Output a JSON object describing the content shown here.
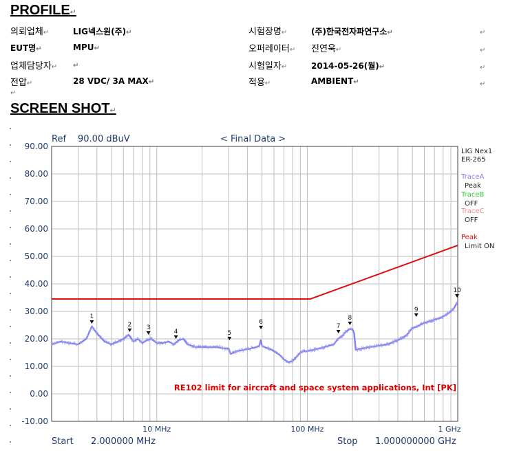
{
  "headings": {
    "profile": "PROFILE",
    "screenshot": "SCREEN SHOT"
  },
  "profile": {
    "client_label": "의뢰업체",
    "client_value": "LIG넥스원(주)",
    "site_label": "시험장명",
    "site_value": "(주)한국전자파연구소",
    "eut_label": "EUT명",
    "eut_value": "MPU",
    "operator_label": "오퍼레이터",
    "operator_value": "진연욱",
    "manager_label": "업체담당자",
    "manager_value": "",
    "date_label": "시험일자",
    "date_value": "2014-05-26(월)",
    "voltage_label": "전압",
    "voltage_value": "28 VDC/ 3A MAX",
    "apply_label": "적용",
    "apply_value": "AMBIENT"
  },
  "chart_header": {
    "ref_label": "Ref",
    "ref_value": "90.00 dBuV",
    "title": "< Final Data >"
  },
  "legend": {
    "device": "LIG Nex1",
    "model": "ER-265",
    "trace_a": "TraceA",
    "trace_a_state": "Peak",
    "trace_b": "TraceB",
    "trace_b_state": "OFF",
    "trace_c": "TraceC",
    "trace_c_state": "OFF",
    "peak": "Peak",
    "limit": "Limit ON"
  },
  "footer": {
    "start_label": "Start",
    "start_value": "2.000000 MHz",
    "stop_label": "Stop",
    "stop_value": "1.000000000 GHz"
  },
  "chart_data": {
    "type": "line",
    "x_scale": "log",
    "xlim": [
      2,
      1000
    ],
    "ylim": [
      -10,
      90
    ],
    "y_ticks": [
      90,
      80,
      70,
      60,
      50,
      40,
      30,
      20,
      10,
      0,
      -10
    ],
    "y_tick_labels": [
      "90.00",
      "80.00",
      "70.00",
      "60.00",
      "50.00",
      "40.00",
      "30.00",
      "20.00",
      "10.00",
      "0.00",
      "-10.00"
    ],
    "x_tick_labels": [
      {
        "x": 10,
        "label": "10 MHz"
      },
      {
        "x": 100,
        "label": "100 MHz"
      },
      {
        "x": 1000,
        "label": "1 GHz"
      }
    ],
    "annotation": "RE102 limit for aircraft and space system applications, Int [PK]",
    "colors": {
      "trace": "#8080ee",
      "limit": "#dd1111",
      "grid": "#bdbdbd",
      "annotation": "#dd0000",
      "trace_a": "#8080ee",
      "trace_b": "#33cc33",
      "trace_c": "#ee8888",
      "peak": "#dd1111",
      "axis_text": "#1f3a6a"
    },
    "series": [
      {
        "name": "Peak",
        "x": [
          2,
          2.3,
          2.6,
          3.0,
          3.4,
          3.7,
          4.0,
          4.5,
          5.0,
          5.5,
          6.0,
          6.5,
          7.0,
          7.5,
          8.0,
          8.6,
          9.2,
          10,
          11,
          12,
          13,
          14,
          15,
          16,
          17,
          18,
          20,
          22,
          25,
          28,
          30,
          31,
          34,
          38,
          42,
          46,
          48,
          49,
          50,
          52,
          55,
          58,
          62,
          66,
          70,
          75,
          80,
          85,
          90,
          95,
          100,
          110,
          120,
          130,
          140,
          150,
          160,
          170,
          180,
          190,
          200,
          205,
          210,
          230,
          260,
          300,
          340,
          380,
          420,
          460,
          500,
          540,
          580,
          620,
          660,
          700,
          760,
          820,
          880,
          940,
          1000
        ],
        "values": [
          18,
          19,
          18.5,
          18,
          20,
          24.5,
          22,
          19,
          18,
          19,
          20,
          21.5,
          19,
          20,
          18.5,
          19.5,
          20,
          18.5,
          18.5,
          19,
          18,
          19.5,
          20,
          18,
          17.5,
          17,
          17,
          17,
          17,
          16.5,
          16.5,
          14.5,
          15.5,
          16,
          16.5,
          17,
          17.5,
          19.5,
          17.5,
          17,
          16.5,
          16,
          15,
          14,
          12.5,
          11.5,
          12,
          13.5,
          15,
          15.5,
          15.5,
          16,
          16.5,
          17,
          17.5,
          18,
          20,
          21,
          22.5,
          23.5,
          23.5,
          22,
          16,
          16.5,
          17,
          17.5,
          18,
          19,
          20,
          21.5,
          24,
          24.5,
          25.5,
          26,
          26.5,
          27,
          27.5,
          28.5,
          29.5,
          31,
          33.5
        ]
      },
      {
        "name": "Limit",
        "x": [
          2,
          105,
          1000
        ],
        "values": [
          34.5,
          34.5,
          54
        ]
      }
    ],
    "markers": [
      {
        "label": "1",
        "x": 3.7,
        "y": 24.5
      },
      {
        "label": "2",
        "x": 6.6,
        "y": 21.5
      },
      {
        "label": "3",
        "x": 8.8,
        "y": 20.5
      },
      {
        "label": "4",
        "x": 13.4,
        "y": 19.0
      },
      {
        "label": "5",
        "x": 30.4,
        "y": 18.5
      },
      {
        "label": "6",
        "x": 49.2,
        "y": 22.5
      },
      {
        "label": "7",
        "x": 161,
        "y": 21.0
      },
      {
        "label": "8",
        "x": 192,
        "y": 24.0
      },
      {
        "label": "9",
        "x": 530,
        "y": 27.0
      },
      {
        "label": "10",
        "x": 990,
        "y": 34.0
      }
    ]
  }
}
